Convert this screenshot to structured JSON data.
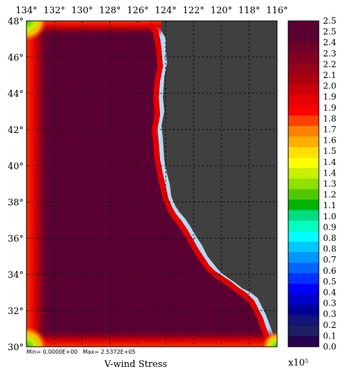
{
  "map": {
    "title": "V-wind Stress",
    "minmax_text": "Min= 0.0000E+00   Max= 2.5372E+05",
    "scale_label": "x10⁵",
    "lon_labels": [
      "134°",
      "132°",
      "130°",
      "128°",
      "126°",
      "124°",
      "122°",
      "120°",
      "118°",
      "116°"
    ],
    "lat_labels": [
      "48°",
      "46°",
      "44°",
      "42°",
      "40°",
      "38°",
      "36°",
      "34°",
      "32°",
      "30°"
    ],
    "lon_range": [
      134,
      116
    ],
    "lat_range": [
      30,
      48
    ],
    "land_color": "#404040",
    "coast_color": "#b7d7f0",
    "data_max_color": "#5a0032"
  },
  "colorbar": {
    "labels": [
      "2.5",
      "2.5",
      "2.4",
      "2.3",
      "2.2",
      "2.1",
      "2.0",
      "1.9",
      "1.9",
      "1.8",
      "1.7",
      "1.6",
      "1.5",
      "1.4",
      "1.4",
      "1.3",
      "1.2",
      "1.1",
      "1.0",
      "0.9",
      "0.8",
      "0.8",
      "0.7",
      "0.6",
      "0.5",
      "0.4",
      "0.3",
      "0.3",
      "0.2",
      "0.1",
      "0.0"
    ],
    "colors": [
      "#5a0032",
      "#5a0032",
      "#6e0028",
      "#820020",
      "#960018",
      "#aa0010",
      "#c8000a",
      "#e60000",
      "#ff0000",
      "#ff4000",
      "#ff8000",
      "#ffb000",
      "#ffe000",
      "#ffff00",
      "#c8f000",
      "#90e000",
      "#50c800",
      "#00b400",
      "#00dc80",
      "#00ffc0",
      "#00ffff",
      "#00c8ff",
      "#0096ff",
      "#0064ff",
      "#0032ff",
      "#0000ff",
      "#0000c8",
      "#000096",
      "#141478",
      "#1e1e64",
      "#280050"
    ]
  }
}
